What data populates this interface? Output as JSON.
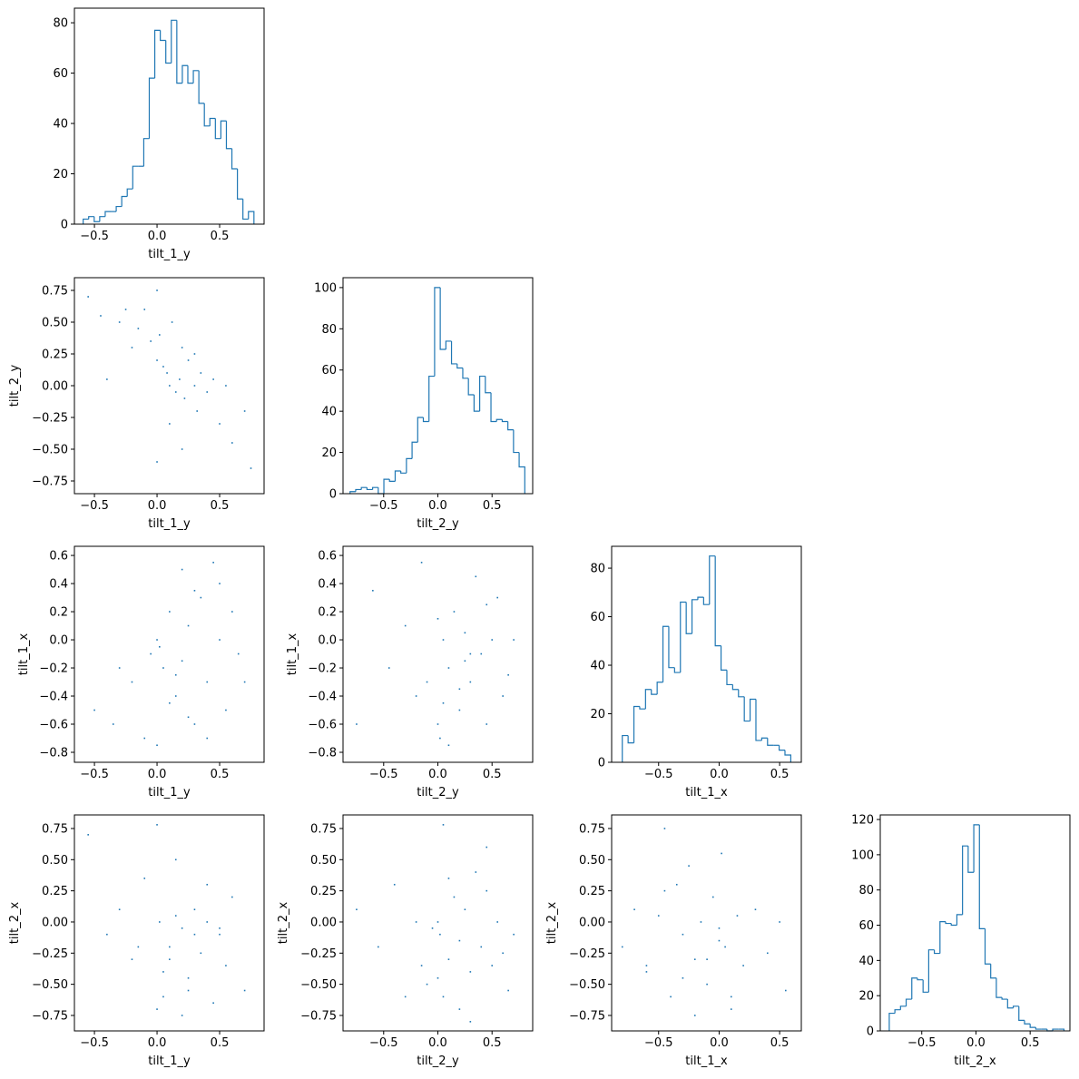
{
  "chart_data": [
    {
      "type": "histogram",
      "xlabel": "tilt_1_y",
      "color": "#1f77b4",
      "bins": [
        -0.59,
        -0.546,
        -0.502,
        -0.458,
        -0.414,
        -0.37,
        -0.326,
        -0.282,
        -0.238,
        -0.194,
        -0.15,
        -0.106,
        -0.062,
        -0.018,
        0.026,
        0.07,
        0.114,
        0.158,
        0.202,
        0.246,
        0.29,
        0.334,
        0.378,
        0.422,
        0.466,
        0.51,
        0.554,
        0.598,
        0.642,
        0.686,
        0.73,
        0.774
      ],
      "counts": [
        2,
        3,
        1,
        3,
        5,
        5,
        7,
        11,
        14,
        23,
        23,
        34,
        58,
        77,
        73,
        64,
        81,
        56,
        63,
        56,
        61,
        48,
        39,
        42,
        34,
        41,
        30,
        22,
        10,
        2,
        5
      ],
      "xlim": [
        -0.66,
        0.855
      ],
      "ylim": [
        0,
        85.8
      ],
      "xticks": [
        {
          "value": -0.5,
          "label": "−0.5"
        },
        {
          "value": 0,
          "label": "0.0"
        },
        {
          "value": 0.5,
          "label": "0.5"
        }
      ],
      "yticks": [
        0,
        20,
        40,
        60,
        80
      ]
    },
    {
      "type": "scatter",
      "xlabel": "tilt_1_y",
      "ylabel": "tilt_2_y",
      "color": "#1f77b4",
      "x": [
        -0.55,
        -0.45,
        -0.4,
        -0.3,
        -0.25,
        -0.2,
        -0.15,
        -0.1,
        -0.05,
        0,
        0,
        0.02,
        0.05,
        0.08,
        0.1,
        0.12,
        0.15,
        0.18,
        0.2,
        0.22,
        0.25,
        0.3,
        0.32,
        0.35,
        0.4,
        0.45,
        0.5,
        0.55,
        0.6,
        0.7,
        0.75,
        0.1,
        0.2,
        0.3,
        0.0
      ],
      "y": [
        0.7,
        0.55,
        0.05,
        0.5,
        0.6,
        0.3,
        0.45,
        0.6,
        0.35,
        0.75,
        0.2,
        0.4,
        0.15,
        0.1,
        0.0,
        0.5,
        -0.05,
        0.05,
        0.3,
        -0.1,
        0.2,
        0.0,
        -0.2,
        0.1,
        -0.05,
        0.05,
        -0.3,
        0.0,
        -0.45,
        -0.2,
        -0.65,
        -0.3,
        -0.5,
        0.25,
        -0.6
      ],
      "xlim": [
        -0.66,
        0.855
      ],
      "ylim": [
        -0.85,
        0.85
      ],
      "xticks": [
        {
          "value": -0.5,
          "label": "−0.5"
        },
        {
          "value": 0,
          "label": "0.0"
        },
        {
          "value": 0.5,
          "label": "0.5"
        }
      ],
      "yticks": [
        {
          "value": -0.75,
          "label": "−0.75"
        },
        {
          "value": -0.5,
          "label": "−0.50"
        },
        {
          "value": -0.25,
          "label": "−0.25"
        },
        {
          "value": 0,
          "label": "0.00"
        },
        {
          "value": 0.25,
          "label": "0.25"
        },
        {
          "value": 0.5,
          "label": "0.50"
        },
        {
          "value": 0.75,
          "label": "0.75"
        }
      ]
    },
    {
      "type": "histogram",
      "xlabel": "tilt_2_y",
      "color": "#1f77b4",
      "bins": [
        -0.81,
        -0.758,
        -0.706,
        -0.654,
        -0.602,
        -0.55,
        -0.498,
        -0.446,
        -0.394,
        -0.342,
        -0.29,
        -0.238,
        -0.186,
        -0.134,
        -0.082,
        -0.03,
        0.022,
        0.074,
        0.126,
        0.178,
        0.23,
        0.282,
        0.334,
        0.386,
        0.438,
        0.49,
        0.542,
        0.594,
        0.646,
        0.698,
        0.75,
        0.802
      ],
      "counts": [
        1,
        2,
        3,
        2,
        3,
        0,
        7,
        6,
        11,
        10,
        17,
        25,
        37,
        35,
        57,
        100,
        70,
        74,
        63,
        61,
        56,
        48,
        40,
        57,
        49,
        35,
        36,
        35,
        31,
        20,
        13
      ],
      "xlim": [
        -0.875,
        0.875
      ],
      "ylim": [
        0,
        104.8
      ],
      "xticks": [
        {
          "value": -0.5,
          "label": "−0.5"
        },
        {
          "value": 0,
          "label": "0.0"
        },
        {
          "value": 0.5,
          "label": "0.5"
        }
      ],
      "yticks": [
        0,
        20,
        40,
        60,
        80,
        100
      ]
    },
    {
      "type": "scatter",
      "xlabel": "tilt_1_y",
      "ylabel": "tilt_1_x",
      "color": "#1f77b4",
      "x": [
        -0.5,
        -0.35,
        -0.2,
        -0.1,
        0,
        0.02,
        0.05,
        0.1,
        0.15,
        0.2,
        0.25,
        0.3,
        0.35,
        0.4,
        0.45,
        0.5,
        0.55,
        0.6,
        0.65,
        0.7,
        0.0,
        -0.05,
        0.1,
        0.2,
        0.3,
        0.4,
        0.15,
        0.25,
        0.5,
        -0.3
      ],
      "y": [
        -0.5,
        -0.6,
        -0.3,
        -0.7,
        0.0,
        -0.05,
        -0.2,
        0.2,
        -0.4,
        0.5,
        0.1,
        -0.6,
        0.3,
        -0.3,
        0.55,
        0.0,
        -0.5,
        0.2,
        -0.1,
        -0.3,
        -0.75,
        -0.1,
        -0.45,
        -0.15,
        0.35,
        -0.7,
        -0.25,
        -0.55,
        0.4,
        -0.2
      ],
      "xlim": [
        -0.66,
        0.855
      ],
      "ylim": [
        -0.871,
        0.665
      ],
      "xticks": [
        {
          "value": -0.5,
          "label": "−0.5"
        },
        {
          "value": 0,
          "label": "0.0"
        },
        {
          "value": 0.5,
          "label": "0.5"
        }
      ],
      "yticks": [
        {
          "value": -0.8,
          "label": "−0.8"
        },
        {
          "value": -0.6,
          "label": "−0.6"
        },
        {
          "value": -0.4,
          "label": "−0.4"
        },
        {
          "value": -0.2,
          "label": "−0.2"
        },
        {
          "value": 0,
          "label": "0.0"
        },
        {
          "value": 0.2,
          "label": "0.2"
        },
        {
          "value": 0.4,
          "label": "0.4"
        },
        {
          "value": 0.6,
          "label": "0.6"
        }
      ]
    },
    {
      "type": "scatter",
      "xlabel": "tilt_2_y",
      "ylabel": "tilt_1_x",
      "color": "#1f77b4",
      "x": [
        -0.75,
        -0.6,
        -0.45,
        -0.3,
        -0.2,
        -0.1,
        0,
        0.02,
        0.05,
        0.1,
        0.15,
        0.2,
        0.25,
        0.3,
        0.35,
        0.4,
        0.45,
        0.5,
        0.55,
        0.6,
        0.65,
        0.7,
        0.0,
        0.1,
        0.2,
        0.3,
        -0.15,
        0.45,
        0.05,
        0.25
      ],
      "y": [
        -0.6,
        0.35,
        -0.2,
        0.1,
        -0.4,
        -0.3,
        -0.6,
        -0.7,
        0.0,
        -0.2,
        0.2,
        -0.5,
        0.05,
        -0.3,
        0.45,
        -0.1,
        -0.6,
        0.0,
        0.3,
        -0.4,
        -0.25,
        0.0,
        0.15,
        -0.75,
        -0.35,
        -0.1,
        0.55,
        0.25,
        -0.45,
        -0.15
      ],
      "xlim": [
        -0.875,
        0.875
      ],
      "ylim": [
        -0.871,
        0.665
      ],
      "xticks": [
        {
          "value": -0.5,
          "label": "−0.5"
        },
        {
          "value": 0,
          "label": "0.0"
        },
        {
          "value": 0.5,
          "label": "0.5"
        }
      ],
      "yticks": [
        {
          "value": -0.8,
          "label": "−0.8"
        },
        {
          "value": -0.6,
          "label": "−0.6"
        },
        {
          "value": -0.4,
          "label": "−0.4"
        },
        {
          "value": -0.2,
          "label": "−0.2"
        },
        {
          "value": 0,
          "label": "0.0"
        },
        {
          "value": 0.2,
          "label": "0.2"
        },
        {
          "value": 0.4,
          "label": "0.4"
        },
        {
          "value": 0.6,
          "label": "0.6"
        }
      ]
    },
    {
      "type": "histogram",
      "xlabel": "tilt_1_x",
      "color": "#1f77b4",
      "bins": [
        -0.8,
        -0.752,
        -0.704,
        -0.656,
        -0.608,
        -0.56,
        -0.512,
        -0.464,
        -0.416,
        -0.368,
        -0.32,
        -0.272,
        -0.224,
        -0.176,
        -0.128,
        -0.08,
        -0.032,
        0.016,
        0.064,
        0.112,
        0.16,
        0.208,
        0.256,
        0.304,
        0.352,
        0.4,
        0.448,
        0.496,
        0.544,
        0.592
      ],
      "counts": [
        11,
        8,
        23,
        22,
        30,
        28,
        33,
        56,
        39,
        37,
        66,
        53,
        67,
        68,
        65,
        85,
        48,
        38,
        32,
        30,
        27,
        17,
        26,
        9,
        10,
        7,
        7,
        5,
        3
      ],
      "xlim": [
        -0.888,
        0.679
      ],
      "ylim": [
        0,
        89
      ],
      "xticks": [
        {
          "value": -0.5,
          "label": "−0.5"
        },
        {
          "value": 0,
          "label": "0.0"
        },
        {
          "value": 0.5,
          "label": "0.5"
        }
      ],
      "yticks": [
        0,
        20,
        40,
        60,
        80
      ]
    },
    {
      "type": "scatter",
      "xlabel": "tilt_1_y",
      "ylabel": "tilt_2_x",
      "color": "#1f77b4",
      "x": [
        -0.55,
        -0.4,
        -0.3,
        -0.2,
        -0.1,
        0,
        0.02,
        0.05,
        0.1,
        0.15,
        0.2,
        0.25,
        0.3,
        0.35,
        0.4,
        0.45,
        0.5,
        0.55,
        0.6,
        0.7,
        0.0,
        0.1,
        0.2,
        0.3,
        0.4,
        -0.15,
        0.15,
        0.25,
        0.5,
        0.05
      ],
      "y": [
        0.7,
        -0.1,
        0.1,
        -0.3,
        0.35,
        -0.7,
        0.0,
        -0.4,
        -0.2,
        0.5,
        -0.05,
        -0.55,
        0.1,
        -0.25,
        0.0,
        -0.65,
        -0.1,
        -0.35,
        0.2,
        -0.55,
        0.78,
        -0.3,
        -0.75,
        -0.1,
        0.3,
        -0.2,
        0.05,
        -0.45,
        -0.05,
        -0.6
      ],
      "xlim": [
        -0.66,
        0.855
      ],
      "ylim": [
        -0.874,
        0.859
      ],
      "xticks": [
        {
          "value": -0.5,
          "label": "−0.5"
        },
        {
          "value": 0,
          "label": "0.0"
        },
        {
          "value": 0.5,
          "label": "0.5"
        }
      ],
      "yticks": [
        {
          "value": -0.75,
          "label": "−0.75"
        },
        {
          "value": -0.5,
          "label": "−0.50"
        },
        {
          "value": -0.25,
          "label": "−0.25"
        },
        {
          "value": 0,
          "label": "0.00"
        },
        {
          "value": 0.25,
          "label": "0.25"
        },
        {
          "value": 0.5,
          "label": "0.50"
        },
        {
          "value": 0.75,
          "label": "0.75"
        }
      ]
    },
    {
      "type": "scatter",
      "xlabel": "tilt_2_y",
      "ylabel": "tilt_2_x",
      "color": "#1f77b4",
      "x": [
        -0.75,
        -0.55,
        -0.4,
        -0.3,
        -0.2,
        -0.1,
        -0.05,
        0,
        0.02,
        0.05,
        0.1,
        0.15,
        0.2,
        0.25,
        0.3,
        0.35,
        0.4,
        0.45,
        0.5,
        0.55,
        0.6,
        0.65,
        0.7,
        0.0,
        0.1,
        0.2,
        0.3,
        0.45,
        -0.15,
        0.05
      ],
      "y": [
        0.1,
        -0.2,
        0.3,
        -0.6,
        0.0,
        -0.5,
        -0.05,
        0.0,
        -0.1,
        0.78,
        -0.3,
        0.2,
        -0.7,
        0.1,
        -0.4,
        0.4,
        -0.2,
        0.6,
        -0.35,
        0.0,
        -0.25,
        -0.55,
        -0.1,
        -0.45,
        0.35,
        -0.15,
        -0.8,
        0.25,
        -0.35,
        -0.6
      ],
      "xlim": [
        -0.875,
        0.875
      ],
      "ylim": [
        -0.874,
        0.859
      ],
      "xticks": [
        {
          "value": -0.5,
          "label": "−0.5"
        },
        {
          "value": 0,
          "label": "0.0"
        },
        {
          "value": 0.5,
          "label": "0.5"
        }
      ],
      "yticks": [
        {
          "value": -0.75,
          "label": "−0.75"
        },
        {
          "value": -0.5,
          "label": "−0.50"
        },
        {
          "value": -0.25,
          "label": "−0.25"
        },
        {
          "value": 0,
          "label": "0.00"
        },
        {
          "value": 0.25,
          "label": "0.25"
        },
        {
          "value": 0.5,
          "label": "0.50"
        },
        {
          "value": 0.75,
          "label": "0.75"
        }
      ]
    },
    {
      "type": "scatter",
      "xlabel": "tilt_1_x",
      "ylabel": "tilt_2_x",
      "color": "#1f77b4",
      "x": [
        -0.8,
        -0.7,
        -0.6,
        -0.5,
        -0.45,
        -0.4,
        -0.35,
        -0.3,
        -0.25,
        -0.2,
        -0.15,
        -0.1,
        -0.05,
        0,
        0.02,
        0.05,
        0.1,
        0.15,
        0.2,
        0.3,
        0.4,
        0.5,
        0.55,
        -0.2,
        -0.1,
        0.0,
        -0.3,
        -0.45,
        0.1,
        -0.6
      ],
      "y": [
        -0.2,
        0.1,
        -0.4,
        0.05,
        0.75,
        -0.6,
        0.3,
        -0.1,
        0.45,
        -0.3,
        0.0,
        -0.5,
        0.2,
        -0.05,
        0.55,
        -0.2,
        -0.7,
        0.05,
        -0.35,
        0.1,
        -0.25,
        0.0,
        -0.55,
        -0.75,
        -0.3,
        -0.15,
        -0.45,
        0.25,
        -0.6,
        -0.35
      ],
      "xlim": [
        -0.888,
        0.679
      ],
      "ylim": [
        -0.874,
        0.859
      ],
      "xticks": [
        {
          "value": -0.5,
          "label": "−0.5"
        },
        {
          "value": 0,
          "label": "0.0"
        },
        {
          "value": 0.5,
          "label": "0.5"
        }
      ],
      "yticks": [
        {
          "value": -0.75,
          "label": "−0.75"
        },
        {
          "value": -0.5,
          "label": "−0.50"
        },
        {
          "value": -0.25,
          "label": "−0.25"
        },
        {
          "value": 0,
          "label": "0.00"
        },
        {
          "value": 0.25,
          "label": "0.25"
        },
        {
          "value": 0.5,
          "label": "0.50"
        },
        {
          "value": 0.75,
          "label": "0.75"
        }
      ]
    },
    {
      "type": "histogram",
      "xlabel": "tilt_2_x",
      "color": "#1f77b4",
      "bins": [
        -0.8,
        -0.748,
        -0.696,
        -0.644,
        -0.592,
        -0.54,
        -0.488,
        -0.436,
        -0.384,
        -0.332,
        -0.28,
        -0.228,
        -0.176,
        -0.124,
        -0.072,
        -0.02,
        0.032,
        0.084,
        0.136,
        0.188,
        0.24,
        0.292,
        0.344,
        0.396,
        0.448,
        0.5,
        0.552,
        0.604,
        0.656,
        0.708,
        0.76,
        0.812
      ],
      "counts": [
        10,
        12,
        14,
        18,
        30,
        29,
        22,
        46,
        44,
        62,
        61,
        60,
        66,
        105,
        90,
        117,
        58,
        38,
        30,
        19,
        18,
        13,
        14,
        6,
        4,
        2,
        1,
        1,
        0,
        1,
        1
      ],
      "xlim": [
        -0.883,
        0.867
      ],
      "ylim": [
        0,
        122.6
      ],
      "xticks": [
        {
          "value": -0.5,
          "label": "−0.5"
        },
        {
          "value": 0,
          "label": "0.0"
        },
        {
          "value": 0.5,
          "label": "0.5"
        }
      ],
      "yticks": [
        0,
        20,
        40,
        60,
        80,
        100,
        120
      ]
    }
  ]
}
